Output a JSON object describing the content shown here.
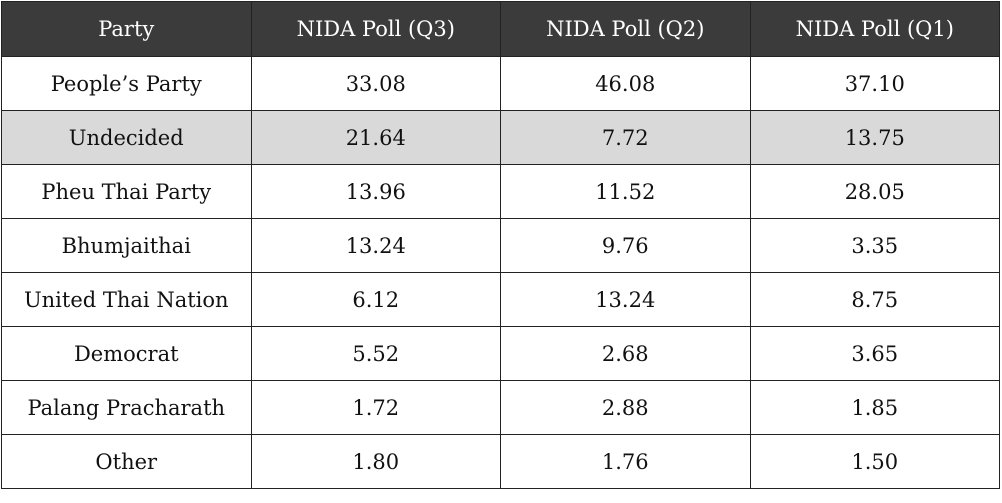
{
  "table": {
    "header": [
      "Party",
      "NIDA Poll (Q3)",
      "NIDA Poll (Q2)",
      "NIDA Poll (Q1)"
    ],
    "rows": [
      [
        "People’s Party",
        "33.08",
        "46.08",
        "37.10"
      ],
      [
        "Undecided",
        "21.64",
        "7.72",
        "13.75"
      ],
      [
        "Pheu Thai Party",
        "13.96",
        "11.52",
        "28.05"
      ],
      [
        "Bhumjaithai",
        "13.24",
        "9.76",
        "3.35"
      ],
      [
        "United Thai Nation",
        "6.12",
        "13.24",
        "8.75"
      ],
      [
        "Democrat",
        "5.52",
        "2.68",
        "3.65"
      ],
      [
        "Palang Pracharath",
        "1.72",
        "2.88",
        "1.85"
      ],
      [
        "Other",
        "1.80",
        "1.76",
        "1.50"
      ]
    ],
    "highlighted_row": 1
  }
}
